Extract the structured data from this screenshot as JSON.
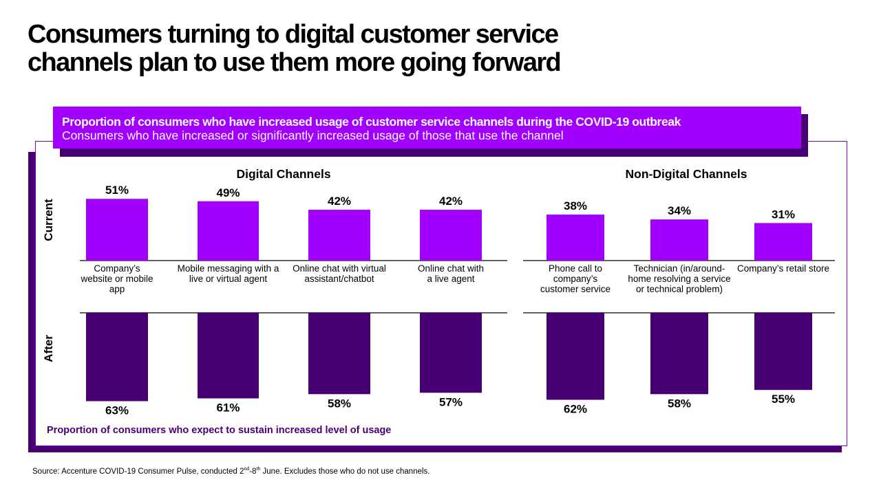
{
  "title_line1": "Consumers turning to digital customer service",
  "title_line2": "channels plan to use them more going forward",
  "banner": {
    "heading": "Proportion of consumers who have increased usage of customer service channels during the COVID-19 outbreak",
    "subheading": "Consumers who have increased or significantly increased usage of those that use the channel"
  },
  "sections": {
    "digital": "Digital Channels",
    "non_digital": "Non-Digital Channels"
  },
  "row_labels": {
    "current": "Current",
    "after": "After"
  },
  "footnote_label": "Proportion of consumers who expect to sustain increased level of usage",
  "source": {
    "prefix": "Source: Accenture COVID-19 Consumer Pulse, conducted 2",
    "sup1": "nd",
    "mid": "-8",
    "sup2": "th",
    "suffix": " June. Excludes those who do not use channels."
  },
  "colors": {
    "current": "#a100ff",
    "after": "#460073",
    "frame": "#7500c0"
  },
  "chart_data": {
    "type": "bar",
    "title": "Proportion of consumers who have increased usage of customer service channels during the COVID-19 outbreak",
    "subtitle": "Consumers who have increased or significantly increased usage of those that use the channel",
    "groups": [
      {
        "name": "Digital Channels",
        "categories": [
          "Company’s website or mobile app",
          "Mobile messaging with a live or virtual agent",
          "Online chat with virtual assistant/chatbot",
          "Online chat with a live agent"
        ]
      },
      {
        "name": "Non-Digital Channels",
        "categories": [
          "Phone call to company’s customer service",
          "Technician (in/around-home resolving a service or technical problem)",
          "Company’s retail store"
        ]
      }
    ],
    "categories": [
      "Company’s website or mobile app",
      "Mobile messaging with a live or virtual agent",
      "Online chat with virtual assistant/chatbot",
      "Online chat with a live agent",
      "Phone call to company’s customer service",
      "Technician (in/around-home resolving a service or technical problem)",
      "Company’s retail store"
    ],
    "series": [
      {
        "name": "Current",
        "values": [
          51,
          49,
          42,
          42,
          38,
          34,
          31
        ],
        "labels": [
          "51%",
          "49%",
          "42%",
          "42%",
          "38%",
          "34%",
          "31%"
        ]
      },
      {
        "name": "After",
        "values": [
          63,
          61,
          58,
          57,
          62,
          58,
          55
        ],
        "labels": [
          "63%",
          "61%",
          "58%",
          "57%",
          "62%",
          "58%",
          "55%"
        ]
      }
    ],
    "after_caption": "Proportion of consumers who expect to sustain increased level of usage",
    "unit": "%",
    "grid": false,
    "legend": "none"
  }
}
